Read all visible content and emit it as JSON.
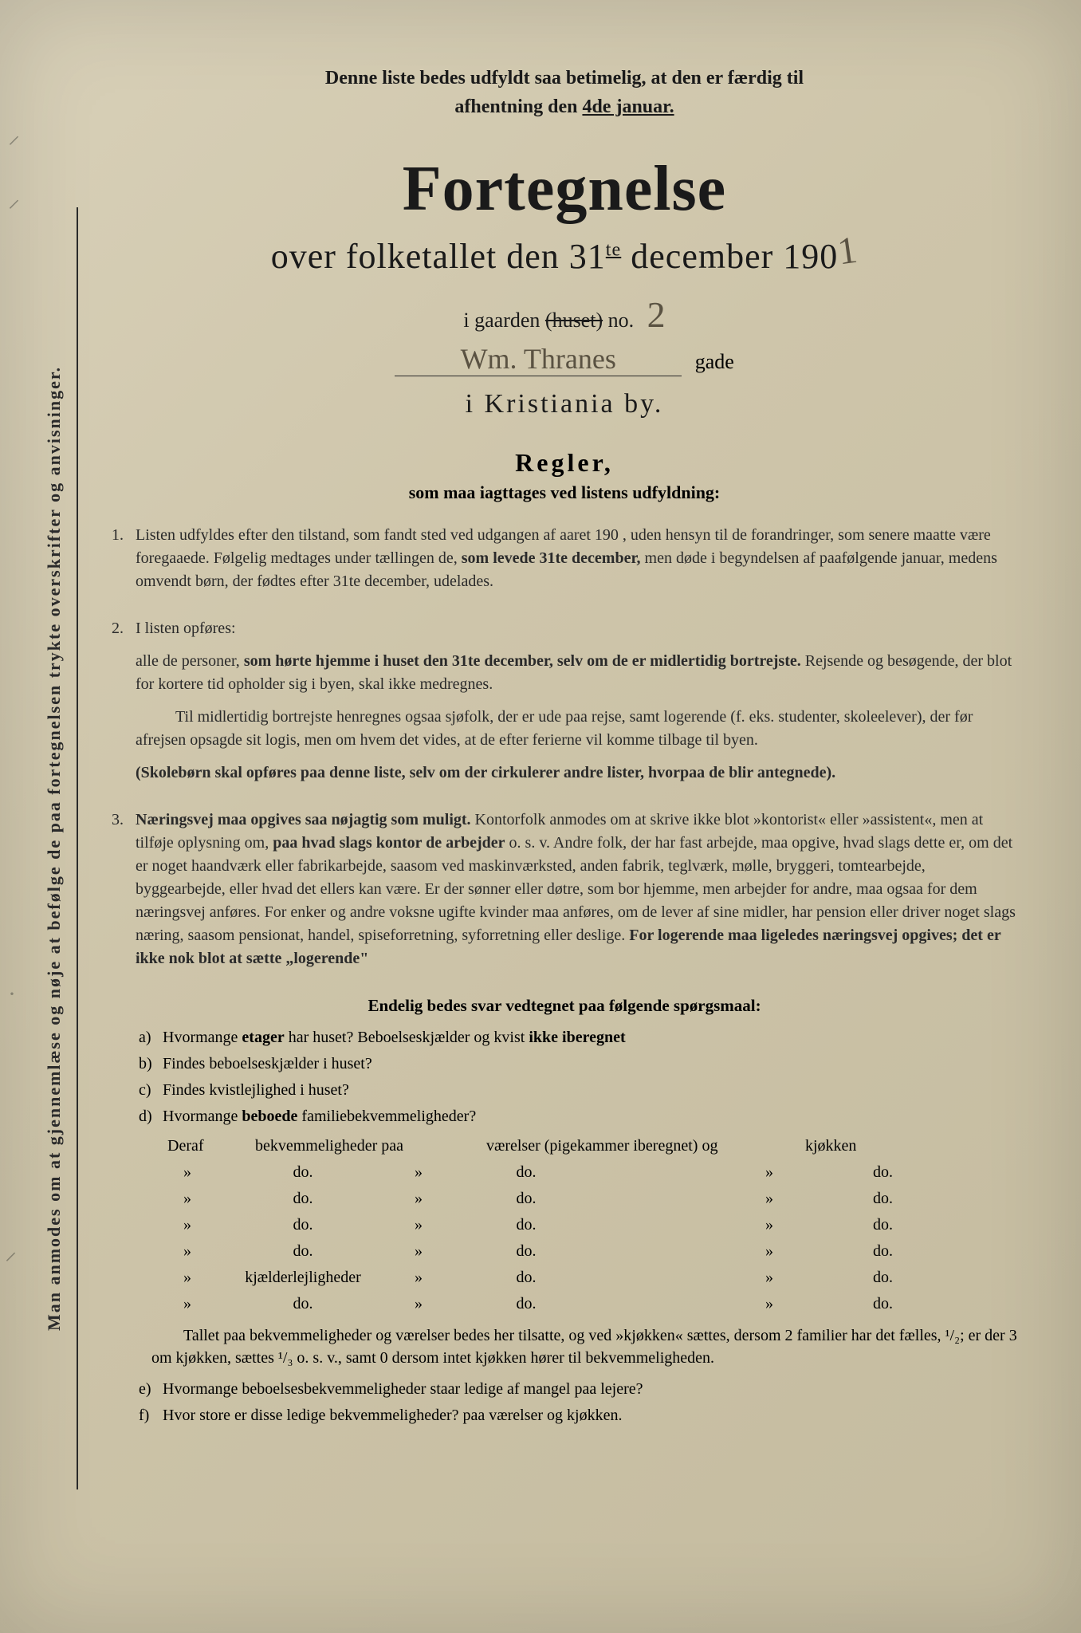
{
  "colors": {
    "paper_bg_start": "#d8d0b8",
    "paper_bg_end": "#c4bb9f",
    "text": "#1a1a1a",
    "text_soft": "#2a2a2a",
    "handwriting": "#5a5242"
  },
  "typography": {
    "title_size_pt": 80,
    "subtitle_size_pt": 44,
    "body_size_pt": 20,
    "notice_size_pt": 24,
    "heading_size_pt": 32
  },
  "notice": {
    "line1": "Denne liste bedes udfyldt saa betimelig, at den er færdig til",
    "line2_prefix": "afhentning den ",
    "line2_underlined": "4de januar."
  },
  "title": "Fortegnelse",
  "subtitle": {
    "pre": "over folketallet den 31",
    "sup": "te",
    "mid": " december 190",
    "handwritten_year": "1"
  },
  "gaarden": {
    "prefix": "i gaarden ",
    "struck": "(huset)",
    "post": " no.",
    "handwritten_no": "2"
  },
  "gade": {
    "handwritten_street": "Wm. Thranes",
    "suffix": "gade"
  },
  "city": "i Kristiania by.",
  "regler": {
    "heading": "Regler,",
    "sub": "som maa iagttages ved listens udfyldning:"
  },
  "rules": [
    {
      "num": "1.",
      "paragraphs": [
        "Listen udfyldes efter den tilstand, som fandt sted ved udgangen af aaret 190   , uden hensyn til de forandringer, som senere maatte være foregaaede.  Følgelig medtages under tællingen de, <b>som levede 31te december,</b> men døde i begyndelsen af paafølgende januar, medens omvendt børn, der fødtes efter 31te december, udelades."
      ]
    },
    {
      "num": "2.",
      "paragraphs": [
        "I listen opføres:",
        "alle de personer, <b>som hørte hjemme i huset den 31te december, selv om de er midlertidig bortrejste.</b>  Rejsende og besøgende, der blot for kortere tid opholder sig i byen, skal ikke medregnes.",
        "Til midlertidig bortrejste henregnes ogsaa sjøfolk, der er ude paa rejse, samt logerende (f. eks. studenter, skoleelever), der før afrejsen opsagde sit logis, men om hvem det vides, at de efter ferierne vil komme tilbage til byen.",
        "<b>(Skolebørn skal opføres paa denne liste, selv om der cirkulerer andre lister, hvorpaa de blir antegnede).</b>"
      ]
    },
    {
      "num": "3.",
      "paragraphs": [
        "<b>Næringsvej maa opgives saa nøjagtig som muligt.</b>  Kontorfolk anmodes om at skrive ikke blot »kontorist« eller »assistent«, men at tilføje oplysning om, <b>paa hvad slags kontor de arbejder</b> o. s. v.  Andre folk, der har fast arbejde, maa opgive, hvad slags dette er, om det er noget haandværk eller fabrikarbejde, saasom ved maskinværksted, anden fabrik, teglværk, mølle, bryggeri, tomtearbejde, byggearbejde, eller hvad det ellers kan være.  Er der sønner eller døtre, som bor hjemme, men arbejder for andre, maa ogsaa for dem næringsvej anføres.  For enker og andre voksne ugifte kvinder maa anføres, om de lever af sine midler, har pension eller driver noget slags næring, saasom pensionat, handel, spiseforretning, syforretning eller deslige.  <b>For logerende maa ligeledes næringsvej opgives; det er ikke nok blot at sætte „logerende\"</b>"
      ]
    }
  ],
  "questions_heading": "Endelig bedes svar vedtegnet paa følgende spørgsmaal:",
  "questions": [
    {
      "letter": "a)",
      "text": "Hvormange <b>etager</b> har huset?  Beboelseskjælder og kvist <b>ikke iberegnet</b>"
    },
    {
      "letter": "b)",
      "text": "Findes beboelseskjælder i huset?"
    },
    {
      "letter": "c)",
      "text": "Findes kvistlejlighed i huset?"
    },
    {
      "letter": "d)",
      "text": "Hvormange <b>beboede</b> familiebekvemmeligheder?"
    }
  ],
  "table": {
    "header": [
      "Deraf",
      "bekvemmeligheder paa",
      "værelser (pigekammer iberegnet) og",
      "kjøkken"
    ],
    "rows": [
      [
        "»",
        "do.",
        "»",
        "do.",
        "»",
        "do."
      ],
      [
        "»",
        "do.",
        "»",
        "do.",
        "»",
        "do."
      ],
      [
        "»",
        "do.",
        "»",
        "do.",
        "»",
        "do."
      ],
      [
        "»",
        "do.",
        "»",
        "do.",
        "»",
        "do."
      ],
      [
        "»",
        "kjælderlejligheder",
        "»",
        "do.",
        "»",
        "do."
      ],
      [
        "»",
        "do.",
        "»",
        "do.",
        "»",
        "do."
      ]
    ]
  },
  "footnote": "Tallet paa bekvemmeligheder og værelser bedes her tilsatte, og ved »kjøkken« sættes, dersom 2 familier har det fælles, ¹/₂; er der 3 om kjøkken, sættes ¹/₃ o. s. v., samt 0 dersom intet kjøkken hører til bekvemmeligheden.",
  "questions_tail": [
    {
      "letter": "e)",
      "text": "Hvormange beboelsesbekvemmeligheder staar ledige af mangel paa lejere?"
    },
    {
      "letter": "f)",
      "text": "Hvor store er disse ledige bekvemmeligheder?          paa          værelser og          kjøkken."
    }
  ],
  "vertical_instruction": "Man anmodes om at gjennemlæse og nøje at befølge de paa fortegnelsen trykte overskrifter og anvisninger."
}
